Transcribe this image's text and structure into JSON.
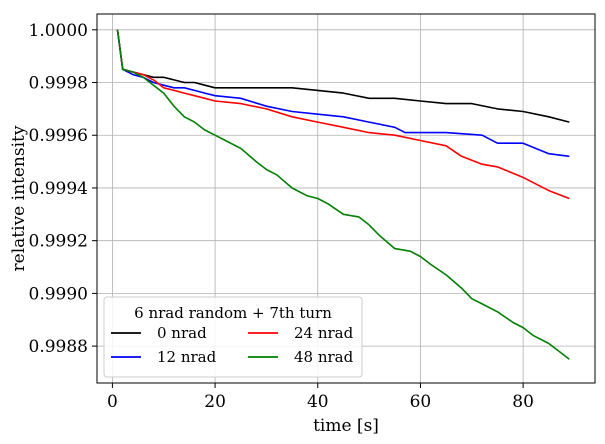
{
  "chart_data": {
    "type": "line",
    "xlabel": "time [s]",
    "ylabel": "relative intensity",
    "xlim": [
      -3,
      94
    ],
    "ylim": [
      0.99866,
      1.00006
    ],
    "x_ticks": [
      0,
      20,
      40,
      60,
      80
    ],
    "y_ticks": [
      0.9988,
      0.999,
      0.9992,
      0.9994,
      0.9996,
      0.9998,
      1.0
    ],
    "x_tick_labels": [
      "0",
      "20",
      "40",
      "60",
      "80"
    ],
    "y_tick_labels": [
      "0.9988",
      "0.9990",
      "0.9992",
      "0.9994",
      "0.9996",
      "0.9998",
      "1.0000"
    ],
    "grid": true,
    "legend": {
      "title": "6 nrad random + 7th turn",
      "location": "lower-left",
      "columns": 2
    },
    "series": [
      {
        "name": "0 nrad",
        "color": "#000000",
        "points": [
          [
            1,
            1.0
          ],
          [
            2,
            0.99985
          ],
          [
            4,
            0.99984
          ],
          [
            6,
            0.99983
          ],
          [
            8,
            0.99982
          ],
          [
            10,
            0.99982
          ],
          [
            12,
            0.99981
          ],
          [
            14,
            0.9998
          ],
          [
            16,
            0.9998
          ],
          [
            18,
            0.99979
          ],
          [
            20,
            0.99978
          ],
          [
            25,
            0.99978
          ],
          [
            30,
            0.99978
          ],
          [
            35,
            0.99978
          ],
          [
            40,
            0.99977
          ],
          [
            45,
            0.99976
          ],
          [
            50,
            0.99974
          ],
          [
            55,
            0.99974
          ],
          [
            60,
            0.99973
          ],
          [
            65,
            0.99972
          ],
          [
            70,
            0.99972
          ],
          [
            75,
            0.9997
          ],
          [
            80,
            0.99969
          ],
          [
            85,
            0.99967
          ],
          [
            89,
            0.99965
          ]
        ]
      },
      {
        "name": "12 nrad",
        "color": "#0000ff",
        "points": [
          [
            1,
            1.0
          ],
          [
            2,
            0.99985
          ],
          [
            4,
            0.99983
          ],
          [
            6,
            0.99982
          ],
          [
            8,
            0.9998
          ],
          [
            10,
            0.99979
          ],
          [
            12,
            0.99978
          ],
          [
            14,
            0.99978
          ],
          [
            16,
            0.99977
          ],
          [
            18,
            0.99976
          ],
          [
            20,
            0.99975
          ],
          [
            25,
            0.99974
          ],
          [
            30,
            0.99971
          ],
          [
            35,
            0.99969
          ],
          [
            40,
            0.99968
          ],
          [
            45,
            0.99967
          ],
          [
            50,
            0.99965
          ],
          [
            55,
            0.99963
          ],
          [
            57,
            0.99961
          ],
          [
            60,
            0.99961
          ],
          [
            65,
            0.99961
          ],
          [
            72,
            0.9996
          ],
          [
            75,
            0.99957
          ],
          [
            80,
            0.99957
          ],
          [
            85,
            0.99953
          ],
          [
            89,
            0.99952
          ]
        ]
      },
      {
        "name": "24 nrad",
        "color": "#ff0000",
        "points": [
          [
            1,
            1.0
          ],
          [
            2,
            0.99985
          ],
          [
            4,
            0.99984
          ],
          [
            6,
            0.99983
          ],
          [
            8,
            0.99981
          ],
          [
            10,
            0.99978
          ],
          [
            12,
            0.99977
          ],
          [
            14,
            0.99976
          ],
          [
            16,
            0.99975
          ],
          [
            18,
            0.99974
          ],
          [
            20,
            0.99973
          ],
          [
            25,
            0.99972
          ],
          [
            30,
            0.9997
          ],
          [
            35,
            0.99967
          ],
          [
            40,
            0.99965
          ],
          [
            45,
            0.99963
          ],
          [
            50,
            0.99961
          ],
          [
            55,
            0.9996
          ],
          [
            60,
            0.99958
          ],
          [
            65,
            0.99956
          ],
          [
            68,
            0.99952
          ],
          [
            72,
            0.99949
          ],
          [
            75,
            0.99948
          ],
          [
            80,
            0.99944
          ],
          [
            85,
            0.99939
          ],
          [
            89,
            0.99936
          ]
        ]
      },
      {
        "name": "48 nrad",
        "color": "#008000",
        "points": [
          [
            1,
            1.0
          ],
          [
            2,
            0.99985
          ],
          [
            4,
            0.99984
          ],
          [
            6,
            0.99982
          ],
          [
            8,
            0.99979
          ],
          [
            10,
            0.99976
          ],
          [
            12,
            0.99971
          ],
          [
            14,
            0.99967
          ],
          [
            16,
            0.99965
          ],
          [
            18,
            0.99962
          ],
          [
            20,
            0.9996
          ],
          [
            22,
            0.99958
          ],
          [
            25,
            0.99955
          ],
          [
            28,
            0.9995
          ],
          [
            30,
            0.99947
          ],
          [
            32,
            0.99945
          ],
          [
            35,
            0.9994
          ],
          [
            38,
            0.99937
          ],
          [
            40,
            0.99936
          ],
          [
            42,
            0.99934
          ],
          [
            45,
            0.9993
          ],
          [
            48,
            0.99929
          ],
          [
            50,
            0.99926
          ],
          [
            52,
            0.99922
          ],
          [
            55,
            0.99917
          ],
          [
            58,
            0.99916
          ],
          [
            60,
            0.99914
          ],
          [
            62,
            0.99911
          ],
          [
            65,
            0.99907
          ],
          [
            68,
            0.99902
          ],
          [
            70,
            0.99898
          ],
          [
            72,
            0.99896
          ],
          [
            75,
            0.99893
          ],
          [
            78,
            0.99889
          ],
          [
            80,
            0.99887
          ],
          [
            82,
            0.99884
          ],
          [
            85,
            0.99881
          ],
          [
            87,
            0.99878
          ],
          [
            89,
            0.99875
          ]
        ]
      }
    ]
  }
}
